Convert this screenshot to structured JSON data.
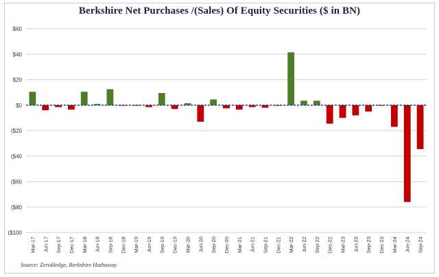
{
  "chart_data": {
    "type": "bar",
    "title": "Berkshire Net Purchases /(Sales) Of Equity Securities ($ in BN)",
    "source": "Source: ZeroHedge, Berkshire Hathaway",
    "ylim": [
      -100,
      60
    ],
    "yticks": [
      60,
      40,
      20,
      0,
      -20,
      -40,
      -60,
      -80,
      -100
    ],
    "ytick_labels": [
      "$60",
      "$40",
      "$20",
      "$0",
      "($20",
      "($40",
      "($60",
      "($80",
      "($100"
    ],
    "xtick_labels": [
      "Mar-17",
      "Jun-17",
      "Sep-17",
      "Dec-17",
      "Mar-18",
      "Jun-18",
      "Sep-18",
      "Dec-18",
      "Mar-19",
      "Jun-19",
      "Sep-19",
      "Dec-19",
      "Mar-20",
      "Jun-20",
      "Sep-20",
      "Dec-20",
      "Mar-21",
      "Jun-21",
      "Sep-21",
      "Dec-21",
      "Mar-22",
      "Jun-22",
      "Sep-22",
      "Dec-22",
      "Mar-23",
      "Jun-23",
      "Sep-23",
      "Dec-23",
      "Mar-24",
      "Jun-24",
      "Sep-24"
    ],
    "categories": [
      "Q1-17",
      "Q2-17",
      "Q3-17",
      "Q4-17",
      "Q1-18",
      "Q2-18",
      "Q3-18",
      "Q4-18",
      "Q1-19",
      "Q2-19",
      "Q3-19",
      "Q4-19",
      "Q1-20",
      "Q2-20",
      "Q3-20",
      "Q4-20",
      "Q1-21",
      "Q2-21",
      "Q3-21",
      "Q4-21",
      "Q1-22",
      "Q2-22",
      "Q3-22",
      "Q4-22",
      "Q1-23",
      "Q2-23",
      "Q3-23",
      "Q4-23",
      "Q1-24",
      "Q2-24",
      "Q3-24"
    ],
    "values": [
      10.5,
      -4,
      -1.5,
      -3.5,
      10.5,
      1,
      12.5,
      -0.5,
      -0.5,
      -1.5,
      9.5,
      -3,
      1.5,
      -13,
      4.5,
      -2.5,
      -3.5,
      -1.5,
      -2,
      -0.5,
      41.5,
      3.5,
      3.5,
      -14.5,
      -10,
      -8,
      -5,
      -0.5,
      -17,
      -76,
      -34.5
    ],
    "colors": {
      "positive": "#4e7d28",
      "negative": "#c00000",
      "grid": "#d3d3d3",
      "zero": "#1f3f8f"
    }
  }
}
